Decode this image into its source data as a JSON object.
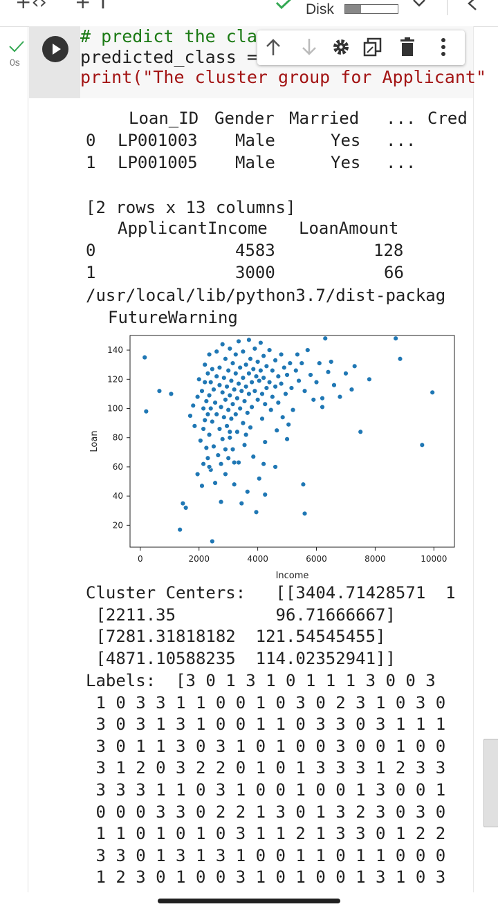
{
  "topbar": {
    "disk_label": "Disk",
    "disk_usage": 0.3
  },
  "cell": {
    "exec_time": "0s",
    "code_lines": [
      {
        "text": "# predict the clas",
        "kind": "comment"
      },
      {
        "text": "predicted_class = ",
        "kind": "code"
      },
      {
        "text": "print(\"The cluster group for Applicant\"",
        "kind": "string"
      }
    ],
    "toolbar_icons": [
      "arrow-up-icon",
      "arrow-down-icon",
      "gear-icon",
      "mirror-cell-icon",
      "delete-icon",
      "more-vert-icon"
    ]
  },
  "output": {
    "table1": {
      "headers": [
        "Loan_ID",
        "Gender",
        "Married",
        "...",
        "Cred"
      ],
      "rows": [
        {
          "index": "0",
          "cells": [
            "LP001003",
            "Male",
            "Yes",
            "..."
          ]
        },
        {
          "index": "1",
          "cells": [
            "LP001005",
            "Male",
            "Yes",
            "..."
          ]
        }
      ]
    },
    "rows_note": "[2 rows x 13 columns]",
    "table2": {
      "headers": [
        "ApplicantIncome",
        "LoanAmount"
      ],
      "rows": [
        {
          "index": "0",
          "cells": [
            "4583",
            "128"
          ]
        },
        {
          "index": "1",
          "cells": [
            "3000",
            "66"
          ]
        }
      ]
    },
    "warning_path": "/usr/local/lib/python3.7/dist-packag",
    "warning_name": "FutureWarning",
    "cluster_lines": [
      "Cluster Centers:   [[3404.71428571  1",
      " [2211.35          96.71666667]",
      " [7281.31818182  121.54545455]",
      " [4871.10588235  114.02352941]]"
    ],
    "label_lines": [
      "Labels:  [3 0 1 3 1 0 1 1 1 3 0 0 3",
      " 1 0 3 3 1 1 0 0 1 0 3 0 2 3 1 0 3 0",
      " 3 0 3 1 3 1 0 0 1 1 0 3 3 0 3 1 1 1",
      " 3 0 1 1 3 0 3 1 0 1 0 0 3 0 0 1 0 0",
      " 3 1 2 0 3 2 2 0 1 0 1 3 3 3 1 2 3 3",
      " 3 3 3 1 1 0 3 1 0 0 1 0 0 1 3 0 0 1",
      " 0 0 0 3 3 0 2 2 1 3 0 1 3 2 3 0 3 0",
      " 1 1 0 1 0 1 0 3 1 1 2 1 3 3 0 1 2 2",
      " 3 3 0 1 3 1 3 1 0 0 1 1 0 1 1 0 0 0",
      " 1 2 3 0 1 0 0 3 1 0 1 0 0 1 3 1 0 3"
    ]
  },
  "chart_data": {
    "type": "scatter",
    "xlabel": "Income",
    "ylabel": "Loan",
    "xlim": [
      -350,
      10700
    ],
    "ylim": [
      5,
      150
    ],
    "xticks": [
      "0",
      "2000",
      "4000",
      "6000",
      "8000",
      "10000"
    ],
    "yticks": [
      "20",
      "40",
      "60",
      "80",
      "100",
      "120",
      "140"
    ],
    "point_color": "#1f77b4",
    "points": [
      [
        150,
        135
      ],
      [
        200,
        98
      ],
      [
        650,
        112
      ],
      [
        1050,
        110
      ],
      [
        1350,
        17
      ],
      [
        1450,
        35
      ],
      [
        1550,
        32
      ],
      [
        1700,
        95
      ],
      [
        1800,
        102
      ],
      [
        1850,
        88
      ],
      [
        1950,
        108
      ],
      [
        1950,
        55
      ],
      [
        2000,
        120
      ],
      [
        2050,
        78
      ],
      [
        2100,
        112
      ],
      [
        2100,
        47
      ],
      [
        2150,
        100
      ],
      [
        2150,
        86
      ],
      [
        2150,
        62
      ],
      [
        2200,
        130
      ],
      [
        2200,
        118
      ],
      [
        2200,
        92
      ],
      [
        2250,
        105
      ],
      [
        2250,
        73
      ],
      [
        2300,
        124
      ],
      [
        2300,
        96
      ],
      [
        2300,
        66
      ],
      [
        2350,
        137
      ],
      [
        2350,
        109
      ],
      [
        2350,
        82
      ],
      [
        2400,
        118
      ],
      [
        2400,
        100
      ],
      [
        2400,
        58
      ],
      [
        2450,
        9
      ],
      [
        2450,
        127
      ],
      [
        2450,
        91
      ],
      [
        2500,
        113
      ],
      [
        2500,
        74
      ],
      [
        2550,
        104
      ],
      [
        2550,
        49
      ],
      [
        2600,
        139
      ],
      [
        2600,
        122
      ],
      [
        2600,
        96
      ],
      [
        2650,
        68
      ],
      [
        2700,
        128
      ],
      [
        2700,
        116
      ],
      [
        2700,
        86
      ],
      [
        2750,
        101
      ],
      [
        2750,
        62
      ],
      [
        2800,
        144
      ],
      [
        2800,
        111
      ],
      [
        2800,
        79
      ],
      [
        2850,
        121
      ],
      [
        2850,
        94
      ],
      [
        2900,
        134
      ],
      [
        2900,
        106
      ],
      [
        2900,
        55
      ],
      [
        2950,
        115
      ],
      [
        2950,
        88
      ],
      [
        3000,
        126
      ],
      [
        3000,
        99
      ],
      [
        3000,
        66
      ],
      [
        3050,
        141
      ],
      [
        3050,
        109
      ],
      [
        3050,
        80
      ],
      [
        3100,
        119
      ],
      [
        3100,
        93
      ],
      [
        3150,
        131
      ],
      [
        3150,
        103
      ],
      [
        3150,
        72
      ],
      [
        3200,
        113
      ],
      [
        3200,
        48
      ],
      [
        3250,
        137
      ],
      [
        3250,
        124
      ],
      [
        3250,
        96
      ],
      [
        3300,
        107
      ],
      [
        3300,
        84
      ],
      [
        3350,
        146
      ],
      [
        3350,
        117
      ],
      [
        3350,
        63
      ],
      [
        3400,
        128
      ],
      [
        3400,
        100
      ],
      [
        3450,
        112
      ],
      [
        3450,
        35
      ],
      [
        3500,
        139
      ],
      [
        3500,
        121
      ],
      [
        3500,
        90
      ],
      [
        3550,
        105
      ],
      [
        3550,
        75
      ],
      [
        3600,
        130
      ],
      [
        3600,
        115
      ],
      [
        3650,
        97
      ],
      [
        3650,
        43
      ],
      [
        3700,
        147
      ],
      [
        3700,
        124
      ],
      [
        3700,
        110
      ],
      [
        3750,
        134
      ],
      [
        3750,
        87
      ],
      [
        3800,
        118
      ],
      [
        3800,
        101
      ],
      [
        3850,
        127
      ],
      [
        3850,
        67
      ],
      [
        3900,
        141
      ],
      [
        3900,
        112
      ],
      [
        3950,
        122
      ],
      [
        3950,
        29
      ],
      [
        4000,
        106
      ],
      [
        4000,
        132
      ],
      [
        4050,
        119
      ],
      [
        4050,
        52
      ],
      [
        4100,
        145
      ],
      [
        4100,
        126
      ],
      [
        4150,
        110
      ],
      [
        4150,
        93
      ],
      [
        4200,
        136
      ],
      [
        4200,
        121
      ],
      [
        4250,
        103
      ],
      [
        4250,
        41
      ],
      [
        4300,
        129
      ],
      [
        4300,
        114
      ],
      [
        4400,
        140
      ],
      [
        4400,
        118
      ],
      [
        4450,
        99
      ],
      [
        4500,
        126
      ],
      [
        4500,
        108
      ],
      [
        4600,
        133
      ],
      [
        4600,
        115
      ],
      [
        4650,
        85
      ],
      [
        4700,
        122
      ],
      [
        4700,
        104
      ],
      [
        4800,
        137
      ],
      [
        4800,
        117
      ],
      [
        4850,
        94
      ],
      [
        4900,
        128
      ],
      [
        4950,
        110
      ],
      [
        5000,
        123
      ],
      [
        5050,
        89
      ],
      [
        5100,
        131
      ],
      [
        5150,
        114
      ],
      [
        5200,
        99
      ],
      [
        5300,
        126
      ],
      [
        5350,
        137
      ],
      [
        5400,
        119
      ],
      [
        5500,
        131
      ],
      [
        5550,
        48
      ],
      [
        5600,
        112
      ],
      [
        5700,
        140
      ],
      [
        5800,
        123
      ],
      [
        5900,
        106
      ],
      [
        6000,
        118
      ],
      [
        6100,
        131
      ],
      [
        6200,
        101
      ],
      [
        6300,
        148
      ],
      [
        6400,
        125
      ],
      [
        6500,
        132
      ],
      [
        6600,
        116
      ],
      [
        6800,
        108
      ],
      [
        7000,
        124
      ],
      [
        7200,
        113
      ],
      [
        7300,
        129
      ],
      [
        7500,
        84
      ],
      [
        7800,
        120
      ],
      [
        8700,
        148
      ],
      [
        8850,
        134
      ],
      [
        9600,
        75
      ],
      [
        9950,
        111
      ],
      [
        4250,
        77
      ],
      [
        3600,
        82
      ],
      [
        2750,
        36
      ],
      [
        5600,
        28
      ],
      [
        3200,
        63
      ],
      [
        6200,
        107
      ],
      [
        4600,
        60
      ],
      [
        2350,
        60
      ],
      [
        5000,
        79
      ],
      [
        4200,
        62
      ],
      [
        3050,
        84
      ],
      [
        2900,
        72
      ]
    ]
  }
}
